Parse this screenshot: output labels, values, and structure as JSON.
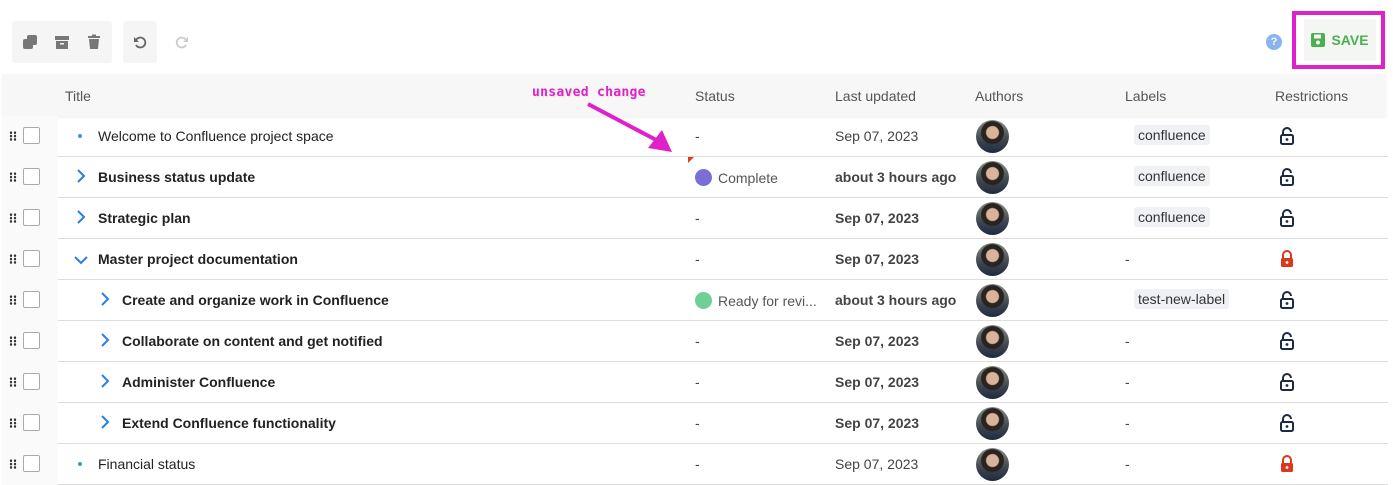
{
  "toolbar": {
    "duplicate": "copy-icon",
    "archive": "archive-icon",
    "delete": "trash-icon",
    "undo": "undo-icon",
    "redo": "redo-icon",
    "help": "?",
    "save_label": "SAVE"
  },
  "annotation": "unsaved change",
  "columns": {
    "title": "Title",
    "status": "Status",
    "updated": "Last updated",
    "authors": "Authors",
    "labels": "Labels",
    "restrictions": "Restrictions"
  },
  "colors": {
    "accent": "#2b7de9",
    "save": "#4caf50",
    "highlight": "#e020c8",
    "complete": "#7b6fd6",
    "review": "#6fcf97",
    "locked": "#d9391c",
    "unlocked": "#1d2a44"
  },
  "rows": [
    {
      "title": "Welcome to Confluence project space",
      "level": 0,
      "expander": "bullet",
      "bold": false,
      "status": "-",
      "updated": "Sep 07, 2023",
      "label": "confluence",
      "locked": false
    },
    {
      "title": "Business status update",
      "level": 0,
      "expander": "collapsed",
      "bold": true,
      "status": "Complete",
      "status_color": "#7b6fd6",
      "updated": "about 3 hours ago",
      "label": "confluence",
      "locked": false,
      "unsaved": true
    },
    {
      "title": "Strategic plan",
      "level": 0,
      "expander": "collapsed",
      "bold": true,
      "status": "-",
      "updated": "Sep 07, 2023",
      "label": "confluence",
      "locked": false
    },
    {
      "title": "Master project documentation",
      "level": 0,
      "expander": "expanded",
      "bold": true,
      "status": "-",
      "updated": "Sep 07, 2023",
      "label": "-",
      "locked": true
    },
    {
      "title": "Create and organize work in Confluence",
      "level": 1,
      "expander": "collapsed",
      "bold": true,
      "status": "Ready for revi...",
      "status_color": "#6fcf97",
      "updated": "about 3 hours ago",
      "label": "test-new-label",
      "locked": false
    },
    {
      "title": "Collaborate on content and get notified",
      "level": 1,
      "expander": "collapsed",
      "bold": true,
      "status": "-",
      "updated": "Sep 07, 2023",
      "label": "-",
      "locked": false
    },
    {
      "title": "Administer Confluence",
      "level": 1,
      "expander": "collapsed",
      "bold": true,
      "status": "-",
      "updated": "Sep 07, 2023",
      "label": "-",
      "locked": false
    },
    {
      "title": "Extend Confluence functionality",
      "level": 1,
      "expander": "collapsed",
      "bold": true,
      "status": "-",
      "updated": "Sep 07, 2023",
      "label": "-",
      "locked": false
    },
    {
      "title": "Financial status",
      "level": 0,
      "expander": "bullet",
      "bold": false,
      "status": "-",
      "updated": "Sep 07, 2023",
      "label": "-",
      "locked": true
    }
  ]
}
